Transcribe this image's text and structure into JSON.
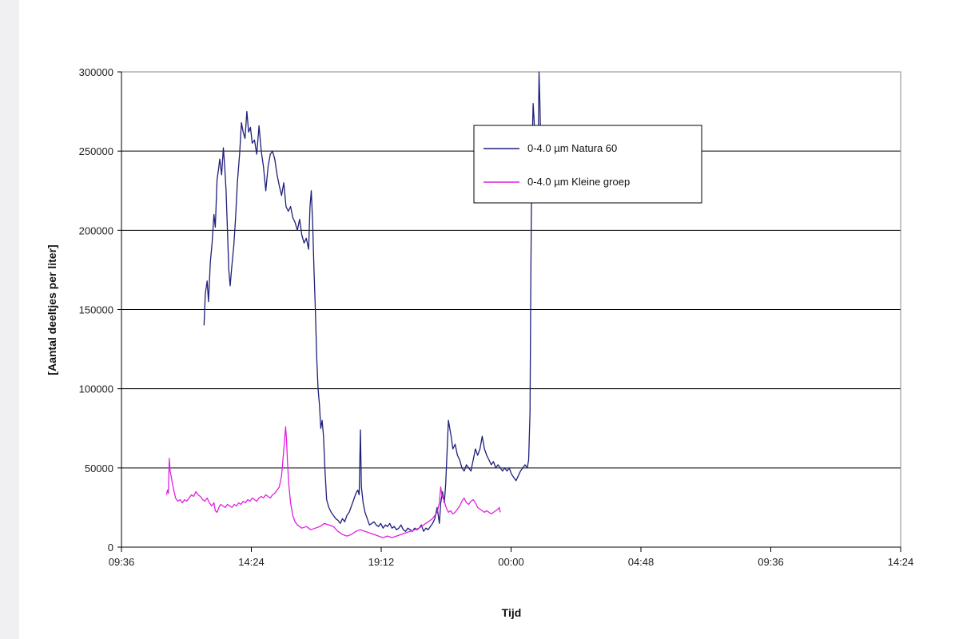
{
  "chart_data": {
    "type": "line",
    "title": "",
    "xlabel": "Tijd",
    "ylabel": "[Aantal deeltjes per liter]",
    "xlim": [
      "09:36",
      "14:24 (+1 day)"
    ],
    "x_unit": "minutes from 09:36",
    "xlim_minutes": [
      0,
      1728
    ],
    "x_ticks": [
      {
        "label": "09:36",
        "minutes": 0
      },
      {
        "label": "14:24",
        "minutes": 288
      },
      {
        "label": "19:12",
        "minutes": 576
      },
      {
        "label": "00:00",
        "minutes": 864
      },
      {
        "label": "04:48",
        "minutes": 1152
      },
      {
        "label": "09:36",
        "minutes": 1440
      },
      {
        "label": "14:24",
        "minutes": 1728
      }
    ],
    "ylim": [
      0,
      300000
    ],
    "y_ticks": [
      0,
      50000,
      100000,
      150000,
      200000,
      250000,
      300000
    ],
    "grid": "horizontal",
    "legend_position": "top-right",
    "series": [
      {
        "name": "0-4.0 µm Natura 60",
        "color": "#1f1f7a",
        "points": [
          [
            183,
            140000
          ],
          [
            186,
            160000
          ],
          [
            190,
            168000
          ],
          [
            193,
            155000
          ],
          [
            197,
            180000
          ],
          [
            201,
            192000
          ],
          [
            205,
            210000
          ],
          [
            208,
            202000
          ],
          [
            212,
            232000
          ],
          [
            215,
            238000
          ],
          [
            218,
            245000
          ],
          [
            222,
            235000
          ],
          [
            226,
            252000
          ],
          [
            229,
            240000
          ],
          [
            232,
            225000
          ],
          [
            235,
            200000
          ],
          [
            238,
            175000
          ],
          [
            241,
            165000
          ],
          [
            245,
            178000
          ],
          [
            249,
            190000
          ],
          [
            253,
            208000
          ],
          [
            257,
            230000
          ],
          [
            262,
            248000
          ],
          [
            266,
            268000
          ],
          [
            270,
            262000
          ],
          [
            274,
            258000
          ],
          [
            278,
            275000
          ],
          [
            282,
            262000
          ],
          [
            286,
            265000
          ],
          [
            290,
            255000
          ],
          [
            295,
            257000
          ],
          [
            300,
            248000
          ],
          [
            305,
            266000
          ],
          [
            310,
            250000
          ],
          [
            315,
            240000
          ],
          [
            320,
            225000
          ],
          [
            325,
            240000
          ],
          [
            330,
            248000
          ],
          [
            335,
            250000
          ],
          [
            340,
            245000
          ],
          [
            345,
            235000
          ],
          [
            350,
            228000
          ],
          [
            355,
            222000
          ],
          [
            360,
            230000
          ],
          [
            365,
            215000
          ],
          [
            370,
            212000
          ],
          [
            375,
            215000
          ],
          [
            380,
            208000
          ],
          [
            385,
            205000
          ],
          [
            390,
            200000
          ],
          [
            395,
            207000
          ],
          [
            400,
            197000
          ],
          [
            405,
            192000
          ],
          [
            410,
            195000
          ],
          [
            415,
            188000
          ],
          [
            418,
            215000
          ],
          [
            421,
            225000
          ],
          [
            424,
            205000
          ],
          [
            427,
            175000
          ],
          [
            430,
            150000
          ],
          [
            433,
            120000
          ],
          [
            436,
            100000
          ],
          [
            439,
            90000
          ],
          [
            442,
            75000
          ],
          [
            445,
            80000
          ],
          [
            448,
            70000
          ],
          [
            451,
            50000
          ],
          [
            455,
            30000
          ],
          [
            460,
            25000
          ],
          [
            465,
            22000
          ],
          [
            470,
            20000
          ],
          [
            475,
            18000
          ],
          [
            480,
            17000
          ],
          [
            485,
            15000
          ],
          [
            490,
            18000
          ],
          [
            495,
            16000
          ],
          [
            500,
            20000
          ],
          [
            505,
            22000
          ],
          [
            510,
            26000
          ],
          [
            515,
            30000
          ],
          [
            520,
            34000
          ],
          [
            524,
            36000
          ],
          [
            527,
            33000
          ],
          [
            530,
            74000
          ],
          [
            532,
            38000
          ],
          [
            536,
            28000
          ],
          [
            540,
            22000
          ],
          [
            545,
            18000
          ],
          [
            550,
            14000
          ],
          [
            555,
            15000
          ],
          [
            560,
            16000
          ],
          [
            565,
            14000
          ],
          [
            570,
            13000
          ],
          [
            575,
            15000
          ],
          [
            580,
            12000
          ],
          [
            585,
            14000
          ],
          [
            590,
            13000
          ],
          [
            595,
            15000
          ],
          [
            600,
            12000
          ],
          [
            605,
            13000
          ],
          [
            610,
            11000
          ],
          [
            615,
            12000
          ],
          [
            620,
            14000
          ],
          [
            625,
            11000
          ],
          [
            630,
            10000
          ],
          [
            635,
            12000
          ],
          [
            640,
            11000
          ],
          [
            645,
            10000
          ],
          [
            650,
            12000
          ],
          [
            655,
            11000
          ],
          [
            660,
            12000
          ],
          [
            665,
            14000
          ],
          [
            670,
            10000
          ],
          [
            675,
            12000
          ],
          [
            680,
            11000
          ],
          [
            685,
            13000
          ],
          [
            690,
            15000
          ],
          [
            695,
            18000
          ],
          [
            700,
            25000
          ],
          [
            705,
            15000
          ],
          [
            708,
            28000
          ],
          [
            712,
            35000
          ],
          [
            716,
            28000
          ],
          [
            719,
            40000
          ],
          [
            722,
            60000
          ],
          [
            725,
            80000
          ],
          [
            728,
            75000
          ],
          [
            731,
            70000
          ],
          [
            735,
            62000
          ],
          [
            740,
            65000
          ],
          [
            745,
            58000
          ],
          [
            750,
            55000
          ],
          [
            755,
            50000
          ],
          [
            760,
            48000
          ],
          [
            765,
            52000
          ],
          [
            770,
            50000
          ],
          [
            775,
            48000
          ],
          [
            780,
            55000
          ],
          [
            785,
            62000
          ],
          [
            790,
            58000
          ],
          [
            795,
            62000
          ],
          [
            800,
            70000
          ],
          [
            805,
            62000
          ],
          [
            810,
            58000
          ],
          [
            815,
            55000
          ],
          [
            820,
            52000
          ],
          [
            825,
            54000
          ],
          [
            830,
            50000
          ],
          [
            835,
            52000
          ],
          [
            840,
            50000
          ],
          [
            845,
            48000
          ],
          [
            850,
            50000
          ],
          [
            855,
            48000
          ],
          [
            860,
            50000
          ],
          [
            865,
            46000
          ],
          [
            870,
            44000
          ],
          [
            875,
            42000
          ],
          [
            880,
            45000
          ],
          [
            885,
            48000
          ],
          [
            890,
            50000
          ],
          [
            895,
            52000
          ],
          [
            900,
            50000
          ],
          [
            903,
            55000
          ],
          [
            906,
            85000
          ],
          [
            908,
            175000
          ],
          [
            910,
            245000
          ],
          [
            913,
            280000
          ],
          [
            915,
            270000
          ],
          [
            918,
            240000
          ],
          [
            921,
            235000
          ],
          [
            924,
            250000
          ],
          [
            926,
            300000
          ],
          [
            928,
            280000
          ],
          [
            931,
            240000
          ],
          [
            934,
            218000
          ]
        ]
      },
      {
        "name": "0-4.0 µm Kleine groep",
        "color": "#e020e0",
        "points": [
          [
            100,
            33000
          ],
          [
            102,
            36000
          ],
          [
            104,
            34000
          ],
          [
            106,
            56000
          ],
          [
            108,
            48000
          ],
          [
            110,
            45000
          ],
          [
            113,
            40000
          ],
          [
            116,
            36000
          ],
          [
            120,
            31000
          ],
          [
            125,
            29000
          ],
          [
            130,
            30000
          ],
          [
            135,
            28000
          ],
          [
            140,
            30000
          ],
          [
            145,
            29000
          ],
          [
            150,
            31000
          ],
          [
            155,
            33000
          ],
          [
            160,
            32000
          ],
          [
            165,
            35000
          ],
          [
            170,
            33000
          ],
          [
            175,
            32000
          ],
          [
            180,
            30000
          ],
          [
            185,
            29000
          ],
          [
            190,
            31000
          ],
          [
            195,
            28000
          ],
          [
            200,
            26000
          ],
          [
            205,
            28000
          ],
          [
            208,
            23000
          ],
          [
            212,
            22000
          ],
          [
            216,
            25000
          ],
          [
            220,
            27000
          ],
          [
            225,
            26000
          ],
          [
            230,
            25000
          ],
          [
            235,
            27000
          ],
          [
            240,
            26000
          ],
          [
            245,
            25000
          ],
          [
            250,
            27000
          ],
          [
            255,
            26000
          ],
          [
            260,
            28000
          ],
          [
            265,
            27000
          ],
          [
            270,
            29000
          ],
          [
            275,
            28000
          ],
          [
            280,
            30000
          ],
          [
            285,
            29000
          ],
          [
            290,
            31000
          ],
          [
            295,
            30000
          ],
          [
            300,
            29000
          ],
          [
            305,
            31000
          ],
          [
            310,
            32000
          ],
          [
            315,
            31000
          ],
          [
            320,
            33000
          ],
          [
            325,
            32000
          ],
          [
            330,
            31000
          ],
          [
            335,
            33000
          ],
          [
            340,
            34000
          ],
          [
            345,
            36000
          ],
          [
            350,
            38000
          ],
          [
            355,
            45000
          ],
          [
            358,
            55000
          ],
          [
            361,
            65000
          ],
          [
            364,
            76000
          ],
          [
            366,
            68000
          ],
          [
            368,
            55000
          ],
          [
            371,
            40000
          ],
          [
            375,
            28000
          ],
          [
            380,
            20000
          ],
          [
            385,
            16000
          ],
          [
            390,
            14000
          ],
          [
            395,
            13000
          ],
          [
            400,
            12000
          ],
          [
            410,
            13000
          ],
          [
            420,
            11000
          ],
          [
            430,
            12000
          ],
          [
            440,
            13000
          ],
          [
            450,
            15000
          ],
          [
            460,
            14000
          ],
          [
            470,
            13000
          ],
          [
            480,
            10000
          ],
          [
            490,
            8000
          ],
          [
            500,
            7000
          ],
          [
            510,
            8000
          ],
          [
            520,
            10000
          ],
          [
            530,
            11000
          ],
          [
            540,
            10000
          ],
          [
            550,
            9000
          ],
          [
            560,
            8000
          ],
          [
            570,
            7000
          ],
          [
            580,
            6000
          ],
          [
            590,
            7000
          ],
          [
            600,
            6000
          ],
          [
            610,
            7000
          ],
          [
            620,
            8000
          ],
          [
            630,
            9000
          ],
          [
            640,
            10000
          ],
          [
            650,
            11000
          ],
          [
            660,
            12000
          ],
          [
            670,
            14000
          ],
          [
            680,
            16000
          ],
          [
            690,
            18000
          ],
          [
            700,
            22000
          ],
          [
            705,
            28000
          ],
          [
            708,
            38000
          ],
          [
            711,
            32000
          ],
          [
            715,
            30000
          ],
          [
            720,
            25000
          ],
          [
            725,
            22000
          ],
          [
            730,
            23000
          ],
          [
            735,
            21000
          ],
          [
            740,
            22000
          ],
          [
            745,
            24000
          ],
          [
            750,
            26000
          ],
          [
            755,
            29000
          ],
          [
            760,
            31000
          ],
          [
            765,
            28000
          ],
          [
            770,
            27000
          ],
          [
            775,
            29000
          ],
          [
            780,
            30000
          ],
          [
            785,
            28000
          ],
          [
            790,
            25000
          ],
          [
            795,
            24000
          ],
          [
            800,
            23000
          ],
          [
            805,
            22000
          ],
          [
            810,
            23000
          ],
          [
            815,
            22000
          ],
          [
            820,
            21000
          ],
          [
            825,
            22000
          ],
          [
            830,
            23000
          ],
          [
            835,
            24000
          ],
          [
            838,
            25000
          ],
          [
            840,
            22000
          ]
        ]
      }
    ]
  }
}
